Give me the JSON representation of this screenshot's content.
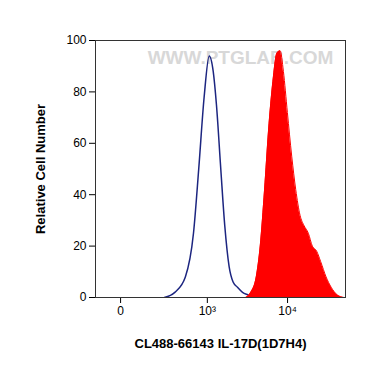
{
  "chart_data": {
    "type": "line",
    "x_label": "CL488-66143 IL-17D(1D7H4)",
    "y_label": "Relative Cell Number",
    "annotations": [
      {
        "text": "WWW.PTGLAB.COM"
      }
    ],
    "log": "x",
    "xlim": [
      -100,
      50000
    ],
    "xticks": [
      0,
      {
        "value": 1000,
        "label": "10³"
      },
      {
        "value": 10000,
        "label": "10⁴"
      }
    ],
    "ylim": [
      0,
      100
    ],
    "yticks": [
      0,
      20,
      40,
      60,
      80,
      100
    ],
    "grid": false,
    "series": [
      {
        "type": "line",
        "color": "#1c2580",
        "x": [
          235,
          348,
          499,
          650,
          767,
          907,
          1059,
          1194,
          1315,
          1495,
          1680,
          1909,
          2142,
          2428,
          2810,
          3276,
          3904
        ],
        "values": [
          0,
          2,
          8,
          25,
          50,
          78,
          94,
          88,
          75,
          50,
          28,
          12,
          6,
          4,
          2,
          1,
          0
        ]
      },
      {
        "type": "area",
        "color": "#ff0000",
        "x": [
          3082,
          3560,
          4152,
          4647,
          5252,
          5873,
          6636,
          7420,
          8130,
          8902,
          9950,
          11230,
          12560,
          14160,
          15820,
          17840,
          19930,
          22490,
          25100,
          29200,
          33600,
          39800,
          47700
        ],
        "values": [
          0,
          2,
          8,
          20,
          42,
          65,
          84,
          95,
          96,
          88,
          72,
          55,
          42,
          32,
          28,
          25,
          20,
          18,
          14,
          8,
          4,
          1,
          0
        ]
      }
    ]
  }
}
